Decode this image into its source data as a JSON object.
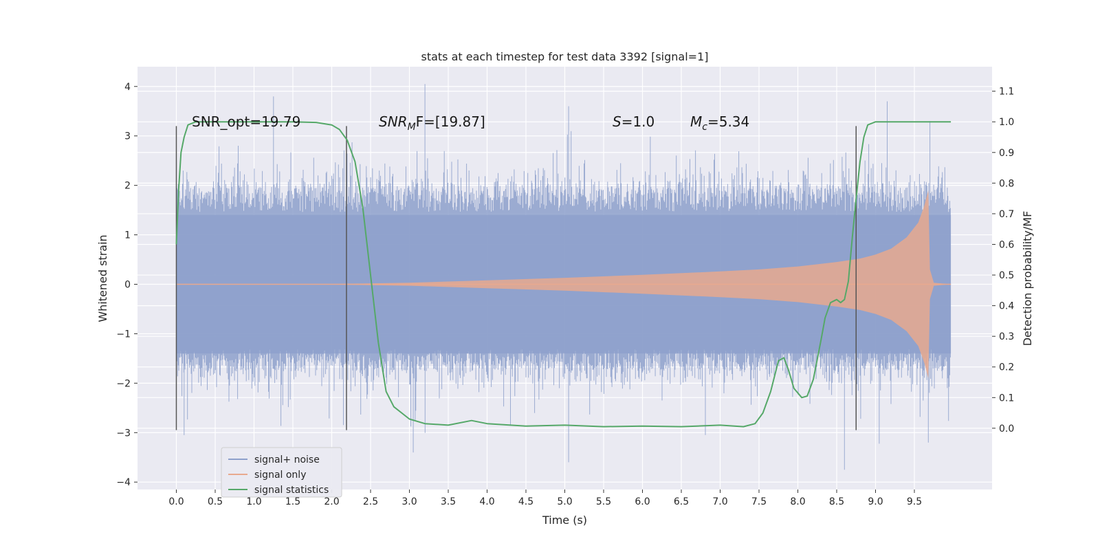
{
  "chart_data": {
    "type": "line",
    "title": "stats at each timestep for test data 3392 [signal=1]",
    "xlabel": "Time (s)",
    "ylabel": "Whitened strain",
    "ylabel_right": "Detection probability/MF",
    "xlim": [
      -0.5,
      10.5
    ],
    "ylim": [
      -4.15,
      4.4
    ],
    "ylim_right": [
      -0.2,
      1.18
    ],
    "x_ticks": [
      "0.0",
      "0.5",
      "1.0",
      "1.5",
      "2.0",
      "2.5",
      "3.0",
      "3.5",
      "4.0",
      "4.5",
      "5.0",
      "5.5",
      "6.0",
      "6.5",
      "7.0",
      "7.5",
      "8.0",
      "8.5",
      "9.0",
      "9.5"
    ],
    "y_ticks_left": [
      "4",
      "3",
      "2",
      "1",
      "0",
      "−1",
      "−2",
      "−3",
      "−4"
    ],
    "y_ticks_right": [
      "1.1",
      "1.0",
      "0.9",
      "0.8",
      "0.7",
      "0.6",
      "0.5",
      "0.4",
      "0.3",
      "0.2",
      "0.1",
      "0.0"
    ],
    "grid": true,
    "legend": {
      "placement": "lower-left",
      "entries": [
        {
          "name": "signal+ noise",
          "color": "#8da0cb"
        },
        {
          "name": "signal only",
          "color": "#e8a98e"
        },
        {
          "name": "signal statistics",
          "color": "#55a868"
        }
      ]
    },
    "annotations": {
      "snr_opt": "SNR_opt=19.79",
      "snr_mf_main": "SNR",
      "snr_mf_sub": "M",
      "snr_mf_rest": "F=[19.87]",
      "s_main": "S",
      "s_rest": "=1.0",
      "mc_main": "M",
      "mc_sub": "c",
      "mc_rest": "=5.34"
    },
    "vertical_markers_x": [
      0.0,
      2.19,
      8.75
    ],
    "vertical_marker_range": [
      -2.95,
      3.2
    ],
    "noise_series": {
      "name": "signal+ noise",
      "x_range": [
        0.0,
        9.97
      ],
      "band_outer": [
        -1.75,
        1.95
      ],
      "band_inner": [
        -1.4,
        1.4
      ],
      "peaks_high": [
        [
          1.25,
          3.8
        ],
        [
          3.2,
          4.05
        ],
        [
          5.05,
          3.6
        ],
        [
          9.15,
          3.7
        ],
        [
          9.7,
          3.3
        ]
      ],
      "peaks_low": [
        [
          0.1,
          -3.05
        ],
        [
          3.05,
          -3.4
        ],
        [
          5.05,
          -3.6
        ],
        [
          8.6,
          -3.75
        ],
        [
          9.68,
          -3.2
        ]
      ]
    },
    "signal_series": {
      "name": "signal only",
      "x": [
        0.0,
        2.0,
        3.0,
        4.0,
        5.0,
        6.0,
        7.0,
        7.5,
        8.0,
        8.5,
        8.8,
        9.0,
        9.2,
        9.4,
        9.55,
        9.63,
        9.68,
        9.7,
        9.75,
        9.97
      ],
      "envelope": [
        0.0,
        0.005,
        0.03,
        0.08,
        0.13,
        0.19,
        0.26,
        0.3,
        0.36,
        0.45,
        0.52,
        0.6,
        0.72,
        0.95,
        1.25,
        1.6,
        1.9,
        0.3,
        0.03,
        0.0
      ]
    },
    "stats_series": {
      "name": "signal statistics",
      "x": [
        0.0,
        0.03,
        0.06,
        0.1,
        0.15,
        0.25,
        0.5,
        1.0,
        1.5,
        1.8,
        2.0,
        2.1,
        2.2,
        2.3,
        2.4,
        2.5,
        2.6,
        2.7,
        2.8,
        3.0,
        3.2,
        3.5,
        3.8,
        4.0,
        4.5,
        5.0,
        5.5,
        6.0,
        6.5,
        7.0,
        7.3,
        7.45,
        7.55,
        7.65,
        7.75,
        7.82,
        7.88,
        7.95,
        8.05,
        8.12,
        8.2,
        8.3,
        8.35,
        8.42,
        8.5,
        8.55,
        8.6,
        8.65,
        8.7,
        8.75,
        8.8,
        8.85,
        8.9,
        9.0,
        9.2,
        9.5,
        9.97
      ],
      "y": [
        0.6,
        0.78,
        0.9,
        0.95,
        0.99,
        1.0,
        1.0,
        1.0,
        1.0,
        0.998,
        0.99,
        0.975,
        0.94,
        0.87,
        0.72,
        0.5,
        0.28,
        0.12,
        0.07,
        0.03,
        0.015,
        0.01,
        0.025,
        0.015,
        0.007,
        0.01,
        0.005,
        0.007,
        0.005,
        0.01,
        0.005,
        0.015,
        0.05,
        0.12,
        0.22,
        0.23,
        0.19,
        0.13,
        0.1,
        0.105,
        0.16,
        0.29,
        0.36,
        0.41,
        0.42,
        0.41,
        0.42,
        0.48,
        0.62,
        0.75,
        0.87,
        0.95,
        0.99,
        1.0,
        1.0,
        1.0,
        1.0
      ]
    }
  }
}
